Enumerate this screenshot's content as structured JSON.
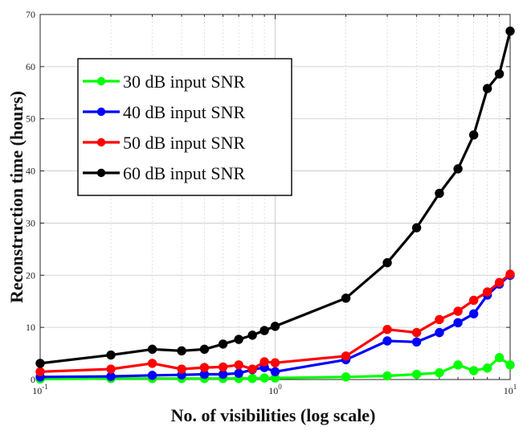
{
  "chart_data": {
    "type": "line",
    "title": "",
    "xlabel": "No. of visibilities (log scale)",
    "ylabel": "Reconstruction time (hours)",
    "xscale": "log",
    "xlim": [
      0.1,
      10
    ],
    "ylim": [
      0,
      70
    ],
    "grid": true,
    "legend_position": "top-left",
    "x_ticks": [
      {
        "value": 0.1,
        "base": "10",
        "exp": "-1"
      },
      {
        "value": 1,
        "base": "10",
        "exp": "0"
      },
      {
        "value": 10,
        "base": "10",
        "exp": "1"
      }
    ],
    "y_ticks": [
      "0",
      "10",
      "20",
      "30",
      "40",
      "50",
      "60",
      "70"
    ],
    "x": [
      0.1,
      0.2,
      0.3,
      0.4,
      0.5,
      0.6,
      0.7,
      0.8,
      0.9,
      1,
      2,
      3,
      4,
      5,
      6,
      7,
      8,
      9,
      10
    ],
    "series": [
      {
        "name": "30 dB input SNR",
        "color": "#00ff00",
        "values": [
          0.1,
          0.2,
          0.2,
          0.2,
          0.2,
          0.2,
          0.2,
          0.2,
          0.3,
          0.3,
          0.5,
          0.7,
          1.0,
          1.3,
          2.8,
          1.7,
          2.2,
          4.2,
          2.8
        ]
      },
      {
        "name": "40 dB input SNR",
        "color": "#0000ff",
        "values": [
          0.5,
          0.6,
          0.8,
          0.9,
          1.0,
          1.0,
          1.2,
          1.9,
          2.3,
          1.5,
          3.8,
          7.4,
          7.2,
          9.0,
          10.9,
          12.6,
          16.2,
          18.3,
          20.0
        ]
      },
      {
        "name": "50 dB input SNR",
        "color": "#ff0000",
        "values": [
          1.5,
          2.0,
          3.1,
          2.0,
          2.3,
          2.4,
          2.8,
          2.0,
          3.4,
          3.2,
          4.5,
          9.6,
          9.0,
          11.5,
          13.1,
          15.2,
          16.8,
          18.6,
          20.2
        ]
      },
      {
        "name": "60 dB input SNR",
        "color": "#000000",
        "values": [
          3.1,
          4.7,
          5.8,
          5.5,
          5.8,
          6.8,
          7.7,
          8.5,
          9.4,
          10.2,
          15.6,
          22.4,
          29.1,
          35.7,
          40.4,
          46.9,
          55.8,
          58.6,
          66.8
        ]
      }
    ]
  }
}
